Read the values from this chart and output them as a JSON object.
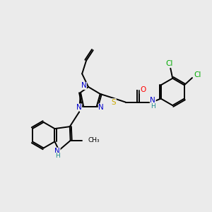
{
  "background_color": "#ebebeb",
  "atom_colors": {
    "N": "#0000cc",
    "O": "#ff0000",
    "S": "#ccaa00",
    "Cl": "#00aa00",
    "C": "#000000",
    "H": "#1a8a8a"
  },
  "bond_color": "#000000",
  "bond_width": 1.4,
  "figsize": [
    3.0,
    3.0
  ],
  "dpi": 100
}
